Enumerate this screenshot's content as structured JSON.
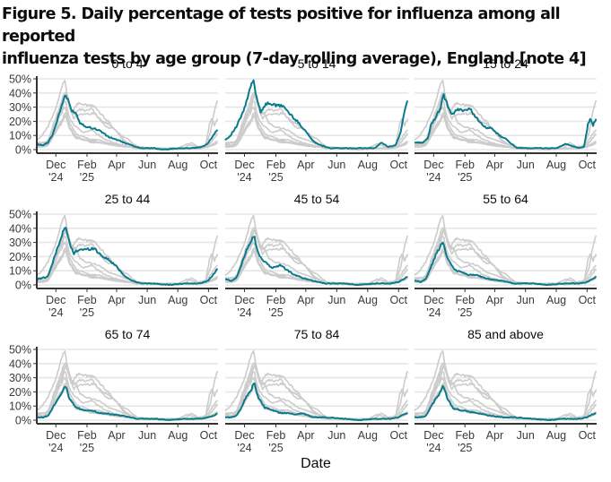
{
  "chart_data": {
    "type": "line",
    "title": "Figure 5. Daily percentage of tests positive for influenza among all reported influenza tests by age group (7-day rolling average), England [note 4]",
    "title_lines": [
      "Figure 5. Daily percentage of tests positive for influenza among all reported",
      "influenza tests by age group (7-day rolling average), England [note 4]"
    ],
    "xlabel": "Date",
    "ylabel": "",
    "x_range": [
      "2024-10-24",
      "2025-10-20"
    ],
    "ylim": [
      0,
      50
    ],
    "y_ticks": [
      "0%",
      "10%",
      "20%",
      "30%",
      "40%",
      "50%"
    ],
    "y_tick_values": [
      0,
      10,
      20,
      30,
      40,
      50
    ],
    "x_ticks": [
      {
        "date": "2024-12-01",
        "label": "Dec",
        "sub": "'24"
      },
      {
        "date": "2025-02-01",
        "label": "Feb",
        "sub": "'25"
      },
      {
        "date": "2025-04-01",
        "label": "Apr",
        "sub": ""
      },
      {
        "date": "2025-06-01",
        "label": "Jun",
        "sub": ""
      },
      {
        "date": "2025-08-01",
        "label": "Aug",
        "sub": ""
      },
      {
        "date": "2025-10-01",
        "label": "Oct",
        "sub": ""
      }
    ],
    "grid": "horizontal",
    "layout": "3x3 small multiples; highlighted series per panel in teal, other age groups in grey",
    "highlight_color": "#0b7a8c",
    "background_color": "#cccccc",
    "series": [
      {
        "name": "0 to 4",
        "points": [
          [
            "2024-10-24",
            4
          ],
          [
            "2024-11-05",
            3
          ],
          [
            "2024-11-15",
            5
          ],
          [
            "2024-11-25",
            11
          ],
          [
            "2024-12-05",
            22
          ],
          [
            "2024-12-15",
            34
          ],
          [
            "2024-12-20",
            39
          ],
          [
            "2024-12-26",
            34
          ],
          [
            "2025-01-02",
            27
          ],
          [
            "2025-01-08",
            27
          ],
          [
            "2025-01-18",
            19
          ],
          [
            "2025-02-01",
            16
          ],
          [
            "2025-02-15",
            15
          ],
          [
            "2025-03-01",
            13
          ],
          [
            "2025-03-15",
            9
          ],
          [
            "2025-03-25",
            8
          ],
          [
            "2025-04-15",
            5
          ],
          [
            "2025-05-01",
            3
          ],
          [
            "2025-05-20",
            1
          ],
          [
            "2025-06-15",
            1
          ],
          [
            "2025-07-01",
            0
          ],
          [
            "2025-08-01",
            1
          ],
          [
            "2025-09-01",
            1
          ],
          [
            "2025-09-20",
            2
          ],
          [
            "2025-10-01",
            5
          ],
          [
            "2025-10-10",
            10
          ],
          [
            "2025-10-20",
            15
          ]
        ]
      },
      {
        "name": "5 to 14",
        "points": [
          [
            "2024-10-24",
            7
          ],
          [
            "2024-11-01",
            9
          ],
          [
            "2024-11-15",
            16
          ],
          [
            "2024-11-30",
            28
          ],
          [
            "2024-12-10",
            40
          ],
          [
            "2024-12-16",
            48
          ],
          [
            "2024-12-19",
            48
          ],
          [
            "2024-12-25",
            37
          ],
          [
            "2025-01-02",
            27
          ],
          [
            "2025-01-10",
            31
          ],
          [
            "2025-01-18",
            33
          ],
          [
            "2025-02-01",
            31
          ],
          [
            "2025-02-15",
            31
          ],
          [
            "2025-03-01",
            25
          ],
          [
            "2025-03-15",
            20
          ],
          [
            "2025-04-01",
            13
          ],
          [
            "2025-04-15",
            6
          ],
          [
            "2025-05-01",
            3
          ],
          [
            "2025-05-20",
            1
          ],
          [
            "2025-06-15",
            1
          ],
          [
            "2025-07-15",
            1
          ],
          [
            "2025-08-15",
            1
          ],
          [
            "2025-08-28",
            5
          ],
          [
            "2025-09-10",
            2
          ],
          [
            "2025-09-25",
            3
          ],
          [
            "2025-10-05",
            12
          ],
          [
            "2025-10-13",
            28
          ],
          [
            "2025-10-20",
            37
          ]
        ]
      },
      {
        "name": "15 to 24",
        "points": [
          [
            "2024-10-24",
            5
          ],
          [
            "2024-11-10",
            5
          ],
          [
            "2024-11-20",
            8
          ],
          [
            "2024-11-25",
            17
          ],
          [
            "2024-12-05",
            23
          ],
          [
            "2024-12-15",
            30
          ],
          [
            "2024-12-20",
            39
          ],
          [
            "2024-12-30",
            30
          ],
          [
            "2025-01-05",
            24
          ],
          [
            "2025-01-15",
            28
          ],
          [
            "2025-02-01",
            28
          ],
          [
            "2025-02-10",
            29
          ],
          [
            "2025-02-25",
            22
          ],
          [
            "2025-03-10",
            16
          ],
          [
            "2025-03-25",
            15
          ],
          [
            "2025-04-10",
            10
          ],
          [
            "2025-04-25",
            7
          ],
          [
            "2025-05-15",
            1
          ],
          [
            "2025-06-15",
            1
          ],
          [
            "2025-07-15",
            1
          ],
          [
            "2025-08-01",
            1
          ],
          [
            "2025-08-20",
            4
          ],
          [
            "2025-09-15",
            1
          ],
          [
            "2025-09-25",
            2
          ],
          [
            "2025-10-03",
            18
          ],
          [
            "2025-10-07",
            22
          ],
          [
            "2025-10-13",
            17
          ],
          [
            "2025-10-20",
            23
          ]
        ]
      },
      {
        "name": "25 to 44",
        "points": [
          [
            "2024-10-24",
            4
          ],
          [
            "2024-11-05",
            5
          ],
          [
            "2024-11-15",
            6
          ],
          [
            "2024-11-25",
            16
          ],
          [
            "2024-12-05",
            27
          ],
          [
            "2024-12-15",
            37
          ],
          [
            "2024-12-20",
            41
          ],
          [
            "2024-12-28",
            30
          ],
          [
            "2025-01-05",
            22
          ],
          [
            "2025-01-15",
            25
          ],
          [
            "2025-02-01",
            25
          ],
          [
            "2025-02-15",
            26
          ],
          [
            "2025-03-01",
            21
          ],
          [
            "2025-03-15",
            18
          ],
          [
            "2025-04-01",
            13
          ],
          [
            "2025-04-15",
            7
          ],
          [
            "2025-05-01",
            3
          ],
          [
            "2025-05-20",
            1
          ],
          [
            "2025-06-15",
            1
          ],
          [
            "2025-07-15",
            0
          ],
          [
            "2025-08-15",
            1
          ],
          [
            "2025-09-15",
            1
          ],
          [
            "2025-09-30",
            3
          ],
          [
            "2025-10-10",
            7
          ],
          [
            "2025-10-20",
            12
          ]
        ]
      },
      {
        "name": "45 to 54",
        "points": [
          [
            "2024-10-24",
            4
          ],
          [
            "2024-11-05",
            3
          ],
          [
            "2024-11-15",
            5
          ],
          [
            "2024-11-25",
            14
          ],
          [
            "2024-12-05",
            25
          ],
          [
            "2024-12-15",
            32
          ],
          [
            "2024-12-20",
            35
          ],
          [
            "2024-12-28",
            22
          ],
          [
            "2025-01-10",
            16
          ],
          [
            "2025-01-25",
            12
          ],
          [
            "2025-02-10",
            14
          ],
          [
            "2025-02-25",
            10
          ],
          [
            "2025-03-10",
            7
          ],
          [
            "2025-03-25",
            5
          ],
          [
            "2025-04-15",
            3
          ],
          [
            "2025-05-10",
            1
          ],
          [
            "2025-06-15",
            1
          ],
          [
            "2025-07-15",
            0
          ],
          [
            "2025-08-15",
            1
          ],
          [
            "2025-09-15",
            1
          ],
          [
            "2025-10-01",
            2
          ],
          [
            "2025-10-20",
            6
          ]
        ]
      },
      {
        "name": "55 to 64",
        "points": [
          [
            "2024-10-24",
            3
          ],
          [
            "2024-11-05",
            2
          ],
          [
            "2024-11-15",
            4
          ],
          [
            "2024-11-25",
            12
          ],
          [
            "2024-12-05",
            21
          ],
          [
            "2024-12-15",
            28
          ],
          [
            "2024-12-20",
            30
          ],
          [
            "2024-12-28",
            19
          ],
          [
            "2025-01-10",
            11
          ],
          [
            "2025-01-25",
            9
          ],
          [
            "2025-02-10",
            7
          ],
          [
            "2025-02-25",
            7
          ],
          [
            "2025-03-10",
            5
          ],
          [
            "2025-03-25",
            4
          ],
          [
            "2025-04-15",
            3
          ],
          [
            "2025-05-10",
            1
          ],
          [
            "2025-06-15",
            1
          ],
          [
            "2025-07-15",
            0
          ],
          [
            "2025-08-15",
            1
          ],
          [
            "2025-09-15",
            1
          ],
          [
            "2025-10-01",
            2
          ],
          [
            "2025-10-10",
            4
          ],
          [
            "2025-10-20",
            6
          ]
        ]
      },
      {
        "name": "65 to 74",
        "points": [
          [
            "2024-10-24",
            2
          ],
          [
            "2024-11-05",
            2
          ],
          [
            "2024-11-15",
            3
          ],
          [
            "2024-11-25",
            9
          ],
          [
            "2024-12-05",
            15
          ],
          [
            "2024-12-15",
            21
          ],
          [
            "2024-12-20",
            25
          ],
          [
            "2024-12-28",
            15
          ],
          [
            "2025-01-10",
            9
          ],
          [
            "2025-01-25",
            7
          ],
          [
            "2025-02-10",
            7
          ],
          [
            "2025-02-25",
            5
          ],
          [
            "2025-03-10",
            5
          ],
          [
            "2025-03-25",
            4
          ],
          [
            "2025-04-15",
            3
          ],
          [
            "2025-05-10",
            1
          ],
          [
            "2025-06-15",
            1
          ],
          [
            "2025-07-15",
            0
          ],
          [
            "2025-08-15",
            1
          ],
          [
            "2025-09-15",
            1
          ],
          [
            "2025-10-01",
            2
          ],
          [
            "2025-10-10",
            3
          ],
          [
            "2025-10-20",
            5
          ]
        ]
      },
      {
        "name": "75 to 84",
        "points": [
          [
            "2024-10-24",
            2
          ],
          [
            "2024-11-05",
            2
          ],
          [
            "2024-11-15",
            3
          ],
          [
            "2024-11-25",
            9
          ],
          [
            "2024-12-05",
            17
          ],
          [
            "2024-12-15",
            22
          ],
          [
            "2024-12-20",
            27
          ],
          [
            "2024-12-28",
            16
          ],
          [
            "2025-01-10",
            9
          ],
          [
            "2025-01-25",
            7
          ],
          [
            "2025-02-10",
            5
          ],
          [
            "2025-02-25",
            5
          ],
          [
            "2025-03-10",
            4
          ],
          [
            "2025-03-25",
            5
          ],
          [
            "2025-04-15",
            2
          ],
          [
            "2025-05-10",
            2
          ],
          [
            "2025-06-15",
            1
          ],
          [
            "2025-07-15",
            0
          ],
          [
            "2025-08-15",
            1
          ],
          [
            "2025-09-15",
            1
          ],
          [
            "2025-10-01",
            2
          ],
          [
            "2025-10-10",
            4
          ],
          [
            "2025-10-20",
            5
          ]
        ]
      },
      {
        "name": "85 and above",
        "points": [
          [
            "2024-10-24",
            2
          ],
          [
            "2024-11-05",
            2
          ],
          [
            "2024-11-15",
            3
          ],
          [
            "2024-11-25",
            9
          ],
          [
            "2024-12-05",
            15
          ],
          [
            "2024-12-15",
            20
          ],
          [
            "2024-12-20",
            25
          ],
          [
            "2024-12-28",
            15
          ],
          [
            "2025-01-10",
            8
          ],
          [
            "2025-01-25",
            7
          ],
          [
            "2025-02-10",
            6
          ],
          [
            "2025-02-25",
            5
          ],
          [
            "2025-03-10",
            4
          ],
          [
            "2025-03-25",
            3
          ],
          [
            "2025-04-15",
            2
          ],
          [
            "2025-05-10",
            2
          ],
          [
            "2025-06-15",
            1
          ],
          [
            "2025-07-15",
            0
          ],
          [
            "2025-08-15",
            1
          ],
          [
            "2025-09-15",
            1
          ],
          [
            "2025-10-01",
            2
          ],
          [
            "2025-10-10",
            4
          ],
          [
            "2025-10-20",
            5
          ]
        ]
      }
    ]
  }
}
